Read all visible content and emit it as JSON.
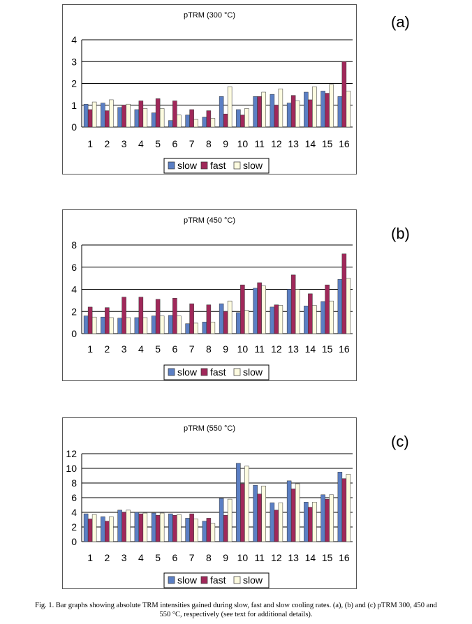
{
  "colors": {
    "slow1": "#5b7fc4",
    "fast": "#a0285a",
    "slow2": "#fdfbe0",
    "bar_stroke": "#333333",
    "grid": "#000000"
  },
  "chart_data": [
    {
      "type": "bar",
      "title": "pTRM (300 °C)",
      "panel": "(a)",
      "categories": [
        "1",
        "2",
        "3",
        "4",
        "5",
        "6",
        "7",
        "8",
        "9",
        "10",
        "11",
        "12",
        "13",
        "14",
        "15",
        "16"
      ],
      "ylim": [
        0,
        4
      ],
      "yticks": [
        "0",
        "1",
        "2",
        "3",
        "4"
      ],
      "grid": true,
      "legend_position": "bottom",
      "series": [
        {
          "name": "slow",
          "values": [
            1.05,
            1.1,
            0.9,
            0.8,
            0.65,
            0.3,
            0.55,
            0.45,
            1.4,
            0.8,
            1.4,
            1.5,
            1.1,
            1.6,
            1.65,
            1.4
          ]
        },
        {
          "name": "fast",
          "values": [
            0.8,
            0.75,
            1.0,
            1.2,
            1.3,
            1.2,
            0.8,
            0.75,
            0.6,
            0.55,
            1.4,
            1.0,
            1.45,
            1.25,
            1.55,
            3.0
          ]
        },
        {
          "name": "slow",
          "values": [
            1.15,
            1.25,
            1.05,
            0.85,
            0.85,
            0.55,
            0.35,
            0.4,
            1.85,
            0.85,
            1.6,
            1.75,
            1.2,
            1.85,
            1.95,
            1.65
          ]
        }
      ]
    },
    {
      "type": "bar",
      "title": "pTRM (450 °C)",
      "panel": "(b)",
      "categories": [
        "1",
        "2",
        "3",
        "4",
        "5",
        "6",
        "7",
        "8",
        "9",
        "10",
        "11",
        "12",
        "13",
        "14",
        "15",
        "16"
      ],
      "ylim": [
        0,
        8
      ],
      "yticks": [
        "0",
        "2",
        "4",
        "6",
        "8"
      ],
      "grid": true,
      "legend_position": "bottom",
      "series": [
        {
          "name": "slow",
          "values": [
            1.6,
            1.5,
            1.4,
            1.45,
            1.6,
            1.65,
            0.9,
            1.05,
            2.7,
            1.9,
            4.1,
            2.4,
            4.0,
            2.5,
            2.9,
            4.9
          ]
        },
        {
          "name": "fast",
          "values": [
            2.4,
            2.35,
            3.3,
            3.3,
            3.1,
            3.2,
            2.7,
            2.6,
            2.0,
            4.4,
            4.6,
            2.6,
            5.3,
            3.6,
            4.4,
            7.2
          ]
        },
        {
          "name": "slow",
          "values": [
            1.5,
            1.45,
            1.45,
            1.45,
            1.6,
            1.6,
            0.95,
            1.05,
            2.95,
            2.1,
            4.3,
            2.55,
            4.0,
            2.55,
            2.95,
            5.0
          ]
        }
      ]
    },
    {
      "type": "bar",
      "title": "pTRM (550 °C)",
      "panel": "(c)",
      "categories": [
        "1",
        "2",
        "3",
        "4",
        "5",
        "6",
        "7",
        "8",
        "9",
        "10",
        "11",
        "12",
        "13",
        "14",
        "15",
        "16"
      ],
      "ylim": [
        0,
        12
      ],
      "yticks": [
        "0",
        "2",
        "4",
        "6",
        "8",
        "10",
        "12"
      ],
      "grid": true,
      "legend_position": "bottom",
      "series": [
        {
          "name": "slow",
          "values": [
            3.8,
            3.4,
            4.3,
            4.0,
            3.9,
            3.8,
            3.2,
            2.8,
            5.9,
            10.7,
            7.7,
            5.3,
            8.3,
            5.4,
            6.4,
            9.5
          ]
        },
        {
          "name": "fast",
          "values": [
            3.1,
            2.8,
            4.0,
            3.8,
            3.6,
            3.6,
            3.8,
            3.2,
            3.6,
            7.9,
            6.5,
            4.3,
            7.2,
            4.7,
            5.8,
            8.6
          ]
        },
        {
          "name": "slow",
          "values": [
            3.7,
            3.4,
            4.3,
            3.9,
            3.9,
            3.7,
            3.1,
            2.5,
            5.8,
            10.3,
            7.6,
            5.3,
            7.9,
            5.4,
            6.4,
            9.2
          ]
        }
      ]
    }
  ],
  "caption": {
    "line1": "Fig. 1. Bar graphs showing absolute TRM intensities gained during slow, fast and slow cooling rates. (a), (b) and (c) pTRM 300, 450 and",
    "line2": "550 °C, respectively (see text for additional details)."
  }
}
